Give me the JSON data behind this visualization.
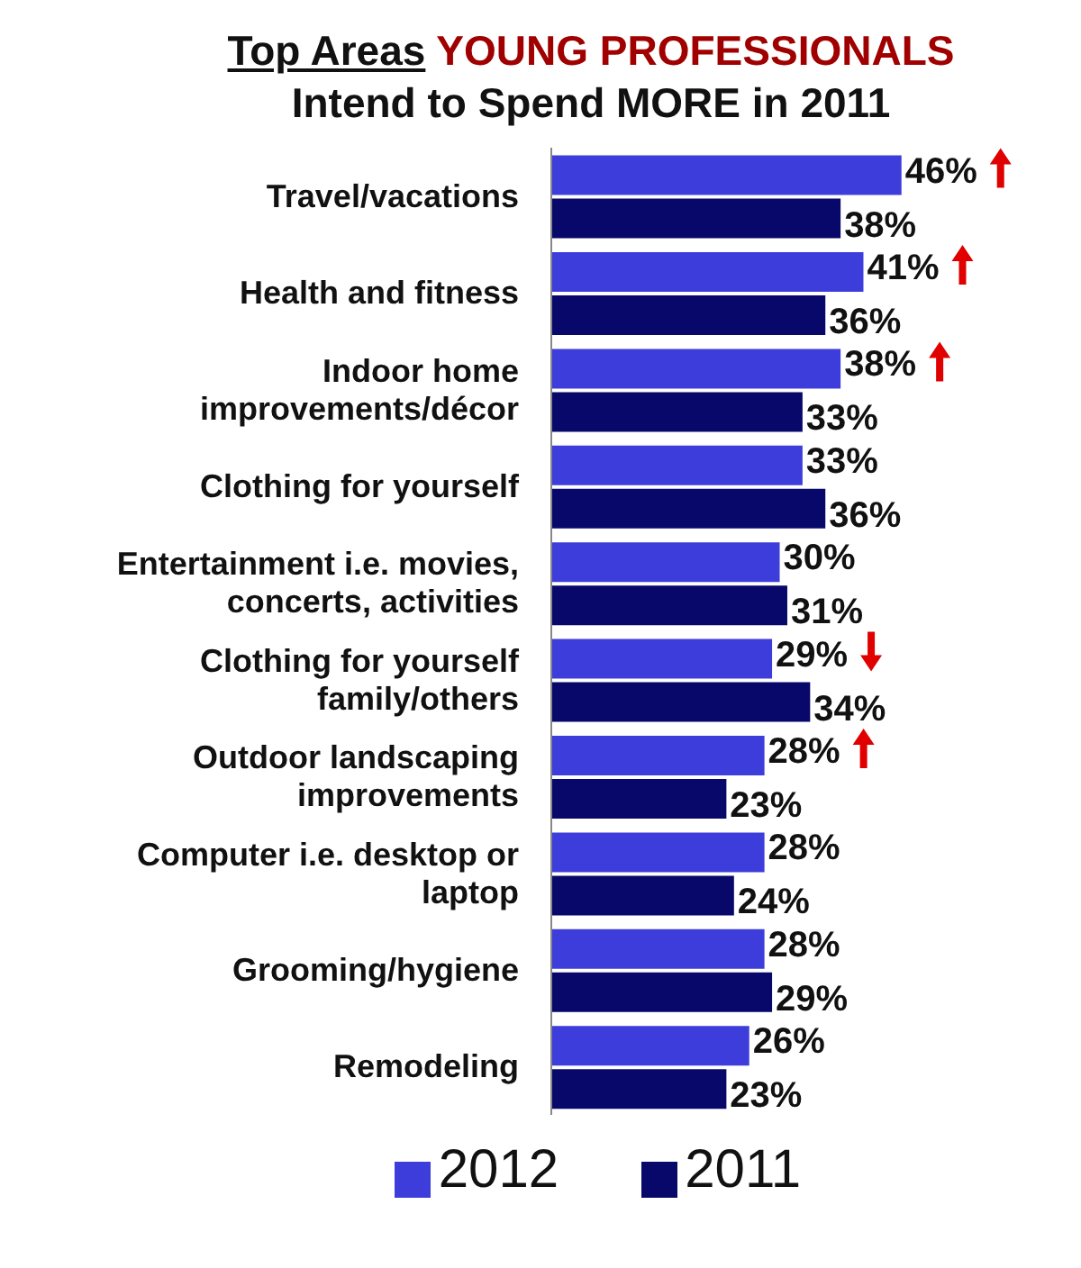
{
  "chart_data": {
    "type": "bar",
    "orientation": "horizontal",
    "title": "Top Areas YOUNG PROFESSIONALS",
    "subtitle": "Intend to Spend MORE in 2011",
    "categories": [
      "Travel/vacations",
      "Health and fitness",
      "Indoor home improvements/décor",
      "Clothing for yourself",
      "Entertainment i.e. movies, concerts, activities",
      "Clothing for yourself family/others",
      "Outdoor landscaping improvements",
      "Computer i.e. desktop or laptop",
      "Grooming/hygiene",
      "Remodeling"
    ],
    "series": [
      {
        "name": "2012",
        "color": "#3d3ddb",
        "values": [
          46,
          41,
          38,
          33,
          30,
          29,
          28,
          28,
          28,
          26
        ],
        "value_labels": [
          "46%",
          "41%",
          "38%",
          "33%",
          "30%",
          "29%",
          "28%",
          "28%",
          "28%",
          "26%"
        ]
      },
      {
        "name": "2011",
        "color": "#08086b",
        "values": [
          38,
          36,
          33,
          36,
          31,
          34,
          23,
          24,
          29,
          23
        ],
        "value_labels": [
          "38%",
          "36%",
          "33%",
          "36%",
          "31%",
          "34%",
          "23%",
          "24%",
          "29%",
          "23%"
        ]
      }
    ],
    "legend": "bottom"
  }
}
